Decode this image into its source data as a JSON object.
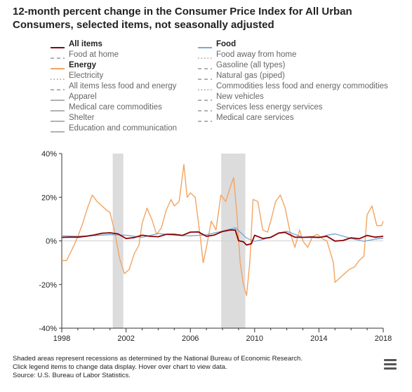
{
  "title": "12-month percent change in the Consumer Price Index for All Urban Consumers, selected items, not seasonally adjusted",
  "legend": [
    {
      "label": "All items",
      "color": "#8b0000",
      "style": "solid",
      "active": true
    },
    {
      "label": "Food",
      "color": "#7ba7d6",
      "style": "solid",
      "active": true
    },
    {
      "label": "Food at home",
      "color": "#999999",
      "style": "dashed",
      "active": false
    },
    {
      "label": "Food away from home",
      "color": "#999999",
      "style": "dotted",
      "active": false
    },
    {
      "label": "Energy",
      "color": "#f4a460",
      "style": "solid",
      "active": true
    },
    {
      "label": "Gasoline (all types)",
      "color": "#999999",
      "style": "dashed",
      "active": false
    },
    {
      "label": "Electricity",
      "color": "#999999",
      "style": "dotted",
      "active": false
    },
    {
      "label": "Natural gas (piped)",
      "color": "#999999",
      "style": "dashed",
      "active": false
    },
    {
      "label": "All items less food and energy",
      "color": "#999999",
      "style": "dashed",
      "active": false
    },
    {
      "label": "Commodities less food and energy commodities",
      "color": "#999999",
      "style": "dotted",
      "active": false
    },
    {
      "label": "Apparel",
      "color": "#999999",
      "style": "solid",
      "active": false
    },
    {
      "label": "New vehicles",
      "color": "#999999",
      "style": "dashed",
      "active": false
    },
    {
      "label": "Medical care commodities",
      "color": "#999999",
      "style": "solid",
      "active": false
    },
    {
      "label": "Services less energy services",
      "color": "#999999",
      "style": "dashed",
      "active": false
    },
    {
      "label": "Shelter",
      "color": "#999999",
      "style": "solid",
      "active": false
    },
    {
      "label": "Medical care services",
      "color": "#999999",
      "style": "dashed",
      "active": false
    },
    {
      "label": "Education and communication",
      "color": "#999999",
      "style": "solid",
      "active": false
    }
  ],
  "footer": {
    "line1": "Shaded areas represent recessions as determined by the National Bureau of Economic Research.",
    "line2": "Click legend items to change data display. Hover over chart to view data.",
    "line3": "Source: U.S. Bureau of Labor Statistics."
  },
  "chart_data": {
    "type": "line",
    "title": "12-month percent change in the Consumer Price Index for All Urban Consumers, selected items, not seasonally adjusted",
    "xlim": [
      1998,
      2018
    ],
    "ylim": [
      -40,
      40
    ],
    "x_ticks": [
      1998,
      2002,
      2006,
      2010,
      2014,
      2018
    ],
    "y_ticks": [
      40,
      20,
      0,
      -20,
      -40
    ],
    "y_tick_labels": [
      "40%",
      "20%",
      "0%",
      "-20%",
      "-40%"
    ],
    "recessions": [
      [
        2001.17,
        2001.83
      ],
      [
        2007.92,
        2009.42
      ]
    ],
    "grid": false,
    "legend_position": "top",
    "series": [
      {
        "name": "All items",
        "color": "#8b0000",
        "x": [
          1998.0,
          1998.5,
          1999.0,
          1999.5,
          2000.0,
          2000.5,
          2001.0,
          2001.5,
          2002.0,
          2002.5,
          2003.0,
          2003.5,
          2004.0,
          2004.5,
          2005.0,
          2005.5,
          2006.0,
          2006.5,
          2007.0,
          2007.5,
          2008.0,
          2008.5,
          2008.8,
          2009.0,
          2009.3,
          2009.5,
          2009.8,
          2010.0,
          2010.5,
          2011.0,
          2011.5,
          2011.9,
          2012.5,
          2013.0,
          2013.5,
          2014.0,
          2014.5,
          2015.0,
          2015.5,
          2016.0,
          2016.5,
          2017.0,
          2017.5,
          2018.0
        ],
        "y": [
          1.6,
          1.7,
          1.7,
          2.1,
          2.7,
          3.5,
          3.7,
          3.2,
          1.1,
          1.5,
          2.6,
          2.1,
          1.9,
          3.0,
          3.0,
          2.5,
          4.0,
          4.1,
          2.1,
          2.7,
          4.3,
          5.0,
          4.9,
          0.1,
          -0.4,
          -1.9,
          -1.3,
          2.6,
          1.1,
          1.6,
          3.6,
          3.9,
          1.7,
          1.6,
          1.8,
          1.6,
          2.1,
          -0.1,
          0.2,
          1.4,
          1.0,
          2.5,
          1.7,
          2.1
        ]
      },
      {
        "name": "Food",
        "color": "#7ba7d6",
        "x": [
          1998.0,
          1999.0,
          2000.0,
          2001.0,
          2002.0,
          2003.0,
          2004.0,
          2005.0,
          2006.0,
          2007.0,
          2008.0,
          2008.8,
          2009.5,
          2010.0,
          2010.5,
          2011.0,
          2011.5,
          2012.0,
          2013.0,
          2014.0,
          2014.5,
          2015.0,
          2016.0,
          2016.8,
          2017.5,
          2018.0
        ],
        "y": [
          2.3,
          2.1,
          2.4,
          2.9,
          2.6,
          1.6,
          3.4,
          2.6,
          2.3,
          2.8,
          4.5,
          6.0,
          1.3,
          -0.2,
          0.6,
          1.8,
          3.6,
          4.4,
          1.6,
          1.4,
          2.6,
          3.2,
          1.1,
          -0.2,
          0.8,
          1.3
        ]
      },
      {
        "name": "Energy",
        "color": "#f4a460",
        "x": [
          1998.0,
          1998.3,
          1998.7,
          1999.0,
          1999.3,
          1999.6,
          1999.9,
          2000.2,
          2000.5,
          2000.8,
          2001.0,
          2001.3,
          2001.6,
          2001.9,
          2002.2,
          2002.5,
          2002.8,
          2003.0,
          2003.3,
          2003.6,
          2003.9,
          2004.2,
          2004.5,
          2004.8,
          2005.0,
          2005.3,
          2005.6,
          2005.8,
          2006.0,
          2006.3,
          2006.6,
          2006.8,
          2007.0,
          2007.3,
          2007.6,
          2007.9,
          2008.2,
          2008.5,
          2008.7,
          2008.9,
          2009.1,
          2009.3,
          2009.5,
          2009.7,
          2009.9,
          2010.2,
          2010.5,
          2010.8,
          2011.0,
          2011.3,
          2011.6,
          2011.9,
          2012.2,
          2012.5,
          2012.8,
          2013.0,
          2013.3,
          2013.6,
          2013.9,
          2014.2,
          2014.5,
          2014.7,
          2014.9,
          2015.0,
          2015.3,
          2015.6,
          2015.9,
          2016.2,
          2016.5,
          2016.8,
          2017.0,
          2017.3,
          2017.6,
          2017.9,
          2018.0
        ],
        "y": [
          -9,
          -9,
          -3,
          2,
          8,
          15,
          21,
          18,
          16,
          14,
          13,
          4,
          -8,
          -15,
          -13,
          -6,
          -2,
          8,
          15,
          10,
          3,
          6,
          14,
          19,
          16,
          18,
          35,
          20,
          22,
          20,
          3,
          -10,
          -3,
          9,
          5,
          21,
          18,
          25,
          29,
          12,
          -10,
          -20,
          -25,
          -10,
          19,
          18,
          5,
          4,
          9,
          18,
          21,
          15,
          4,
          -3,
          5,
          0,
          -3,
          2,
          3,
          1,
          0,
          -5,
          -10,
          -19,
          -17,
          -15,
          -13,
          -12,
          -9,
          -7,
          12,
          16,
          7,
          7,
          9
        ]
      }
    ]
  }
}
